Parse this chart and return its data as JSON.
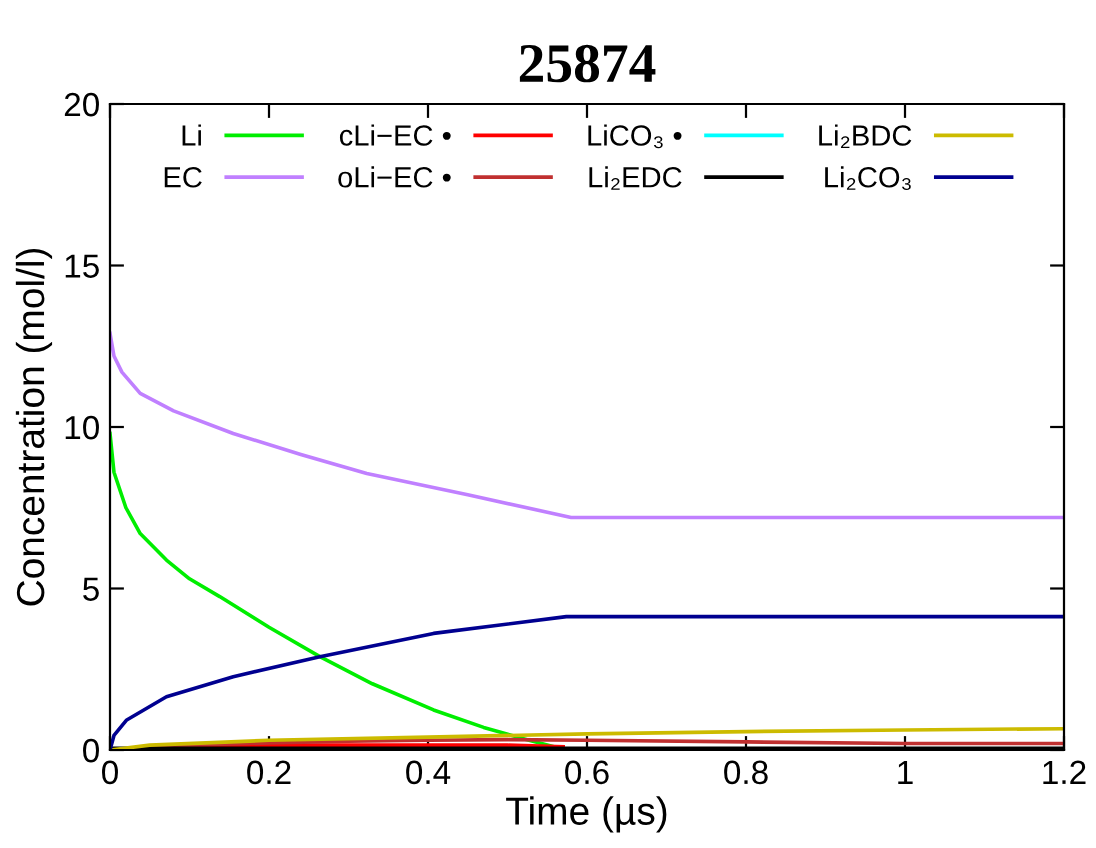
{
  "chart_data": {
    "type": "line",
    "title": "25874",
    "xlabel": "Time (µs)",
    "ylabel": "Concentration (mol/l)",
    "xlim": [
      0,
      1.2
    ],
    "ylim": [
      0,
      20
    ],
    "xticks": [
      0,
      0.2,
      0.4,
      0.6,
      0.8,
      1,
      1.2
    ],
    "yticks": [
      0,
      5,
      10,
      15,
      20
    ],
    "grid": false,
    "legend": "top",
    "marker": "none",
    "line_style": "solid",
    "series": [
      {
        "name": "Li",
        "color": "#00ee00",
        "x": [
          0,
          0.005,
          0.02,
          0.038,
          0.071,
          0.1,
          0.138,
          0.2,
          0.264,
          0.33,
          0.407,
          0.47,
          0.52,
          0.574,
          0.6,
          1.2
        ],
        "values": [
          9.8,
          8.6,
          7.5,
          6.7,
          5.88,
          5.3,
          4.75,
          3.8,
          2.89,
          2.05,
          1.24,
          0.7,
          0.35,
          0.0,
          0.0,
          0.0
        ]
      },
      {
        "name": "EC",
        "color": "#c080ff",
        "x": [
          0,
          0.005,
          0.015,
          0.038,
          0.08,
          0.155,
          0.24,
          0.323,
          0.45,
          0.58,
          1.2
        ],
        "values": [
          12.9,
          12.2,
          11.7,
          11.04,
          10.5,
          9.8,
          9.15,
          8.56,
          7.9,
          7.2,
          7.2
        ]
      },
      {
        "name": "cLi−EC •",
        "color": "#ff0000",
        "x": [
          0.1,
          0.2,
          0.3,
          0.4,
          0.5,
          0.57
        ],
        "values": [
          0.15,
          0.15,
          0.15,
          0.15,
          0.15,
          0.1
        ]
      },
      {
        "name": "oLi−EC •",
        "color": "#c03030",
        "x": [
          0,
          0.1,
          0.2,
          0.3,
          0.4,
          0.5,
          0.6,
          0.8,
          1.0,
          1.2
        ],
        "values": [
          0,
          0.15,
          0.22,
          0.27,
          0.3,
          0.32,
          0.3,
          0.25,
          0.2,
          0.2
        ]
      },
      {
        "name": "LiCO₃ •",
        "color": "#00ffff"
      },
      {
        "name": "Li₂EDC",
        "color": "#000000",
        "x": [
          0,
          1.2
        ],
        "values": [
          0.05,
          0.05
        ]
      },
      {
        "name": "Li₂BDC",
        "color": "#ccbb00",
        "x": [
          0,
          0.05,
          0.2,
          0.4,
          0.6,
          0.8,
          1.0,
          1.2
        ],
        "values": [
          0,
          0.15,
          0.3,
          0.4,
          0.5,
          0.57,
          0.62,
          0.66
        ]
      },
      {
        "name": "Li₂CO₃",
        "color": "#000090",
        "x": [
          0,
          0.005,
          0.021,
          0.071,
          0.155,
          0.264,
          0.407,
          0.574,
          1.2
        ],
        "values": [
          0,
          0.45,
          0.93,
          1.65,
          2.27,
          2.89,
          3.61,
          4.13,
          4.13
        ]
      }
    ]
  }
}
